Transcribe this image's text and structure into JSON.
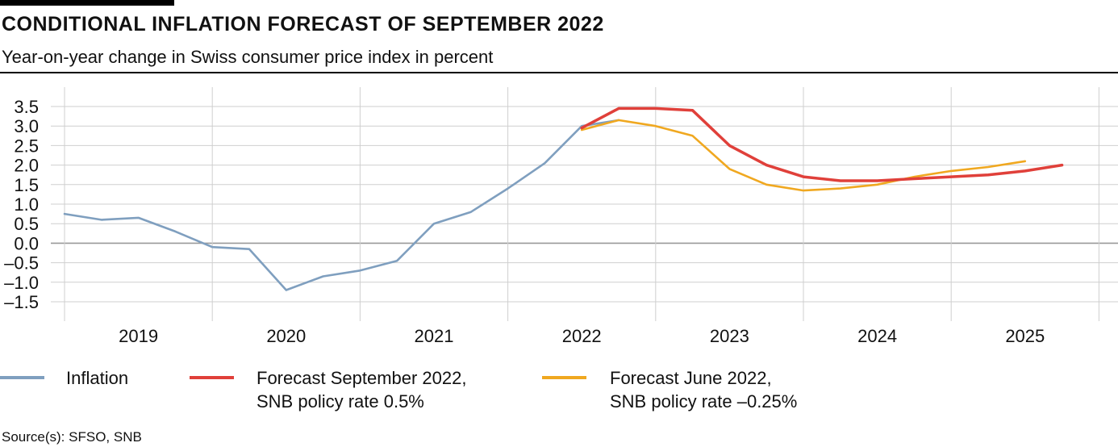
{
  "title": "CONDITIONAL INFLATION FORECAST OF SEPTEMBER 2022",
  "subtitle": "Year-on-year change in Swiss consumer price index in percent",
  "source": "Source(s): SFSO, SNB",
  "chart_data": {
    "type": "line",
    "title": "CONDITIONAL INFLATION FORECAST OF SEPTEMBER 2022",
    "subtitle": "Year-on-year change in Swiss consumer price index in percent",
    "xlabel": "",
    "ylabel": "",
    "x_range": [
      "2018Q3",
      "2025Q3"
    ],
    "ylim": [
      -1.5,
      3.5
    ],
    "yticks": [
      3.5,
      3.0,
      2.5,
      2.0,
      1.5,
      1.0,
      0.5,
      0.0,
      -0.5,
      -1.0,
      -1.5
    ],
    "ytick_labels": [
      "3.5",
      "3.0",
      "2.5",
      "2.0",
      "1.5",
      "1.0",
      "0.5",
      "0.0",
      "–0.5",
      "–1.0",
      "–1.5"
    ],
    "xtick_labels": [
      "2019",
      "2020",
      "2021",
      "2022",
      "2023",
      "2024",
      "2025"
    ],
    "grid": true,
    "legend_position": "bottom",
    "series": [
      {
        "name": "Inflation",
        "color": "#7f9fbf",
        "x": [
          "2018Q3",
          "2018Q4",
          "2019Q1",
          "2019Q2",
          "2019Q3",
          "2019Q4",
          "2020Q1",
          "2020Q2",
          "2020Q3",
          "2020Q4",
          "2021Q1",
          "2021Q2",
          "2021Q3",
          "2021Q4",
          "2022Q1",
          "2022Q2"
        ],
        "values": [
          0.75,
          0.6,
          0.65,
          0.3,
          -0.1,
          -0.15,
          -1.2,
          -0.85,
          -0.7,
          -0.45,
          0.5,
          0.8,
          1.4,
          2.05,
          3.0,
          3.15
        ]
      },
      {
        "name": "Forecast September 2022, SNB policy rate 0.5%",
        "color": "#e0403a",
        "x": [
          "2022Q1",
          "2022Q2",
          "2022Q3",
          "2022Q4",
          "2023Q1",
          "2023Q2",
          "2023Q3",
          "2023Q4",
          "2024Q1",
          "2024Q2",
          "2024Q3",
          "2024Q4",
          "2025Q1",
          "2025Q2"
        ],
        "values": [
          2.95,
          3.45,
          3.45,
          3.4,
          2.5,
          2.0,
          1.7,
          1.6,
          1.6,
          1.65,
          1.7,
          1.75,
          1.85,
          2.0
        ]
      },
      {
        "name": "Forecast June 2022, SNB policy rate –0.25%",
        "color": "#f0a820",
        "x": [
          "2022Q1",
          "2022Q2",
          "2022Q3",
          "2022Q4",
          "2023Q1",
          "2023Q2",
          "2023Q3",
          "2023Q4",
          "2024Q1",
          "2024Q2",
          "2024Q3",
          "2024Q4",
          "2025Q1"
        ],
        "values": [
          2.9,
          3.15,
          3.0,
          2.75,
          1.9,
          1.5,
          1.35,
          1.4,
          1.5,
          1.7,
          1.85,
          1.95,
          2.1
        ]
      }
    ]
  },
  "legend": [
    {
      "line1": "Inflation",
      "line2": "",
      "color": "#7f9fbf"
    },
    {
      "line1": "Forecast September 2022,",
      "line2": "SNB policy rate 0.5%",
      "color": "#e0403a"
    },
    {
      "line1": "Forecast June 2022,",
      "line2": "SNB policy rate –0.25%",
      "color": "#f0a820"
    }
  ]
}
